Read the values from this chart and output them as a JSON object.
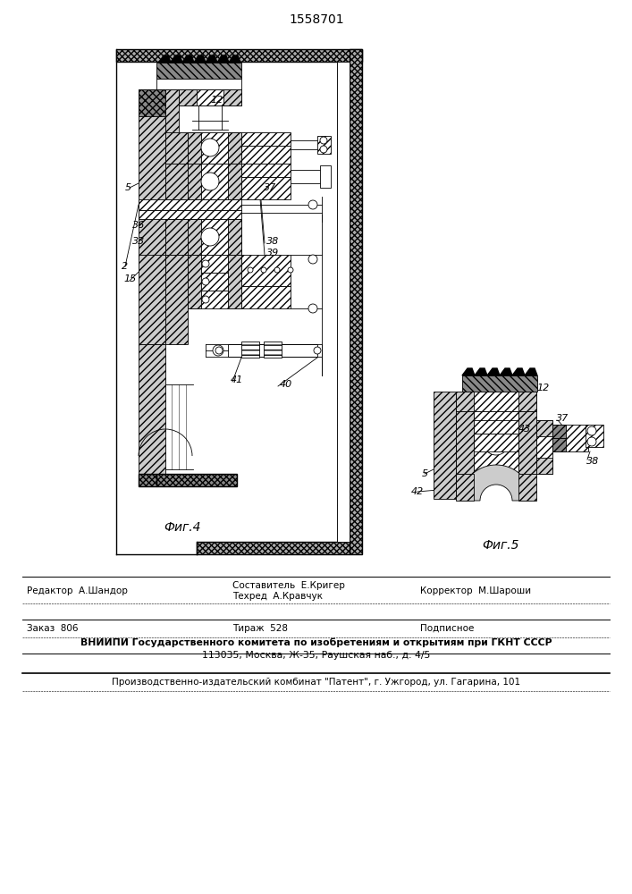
{
  "patent_number": "1558701",
  "fig4_label": "Фиг.4",
  "fig5_label": "Фиг.5",
  "editor_label": "Редактор  А.Шандор",
  "compiler_label": "Составитель  Е.Кригер",
  "tech_label": "Техред  А.Кравчук",
  "corrector_label": "Корректор  М.Шароши",
  "order_label": "Заказ  806",
  "tirazh_label": "Тираж  528",
  "podpisnoe_label": "Подписное",
  "vniipи1": "ВНИИПИ Государственного комитета по изобретениям и открытиям при ГКНТ СССР",
  "vniipи2": "113035, Москва, Ж-35, Раушская наб., д. 4/5",
  "kombinat": "Производственно-издательский комбинат \"Патент\", г. Ужгород, ул. Гагарина, 101",
  "bg": "#f5f5f0"
}
